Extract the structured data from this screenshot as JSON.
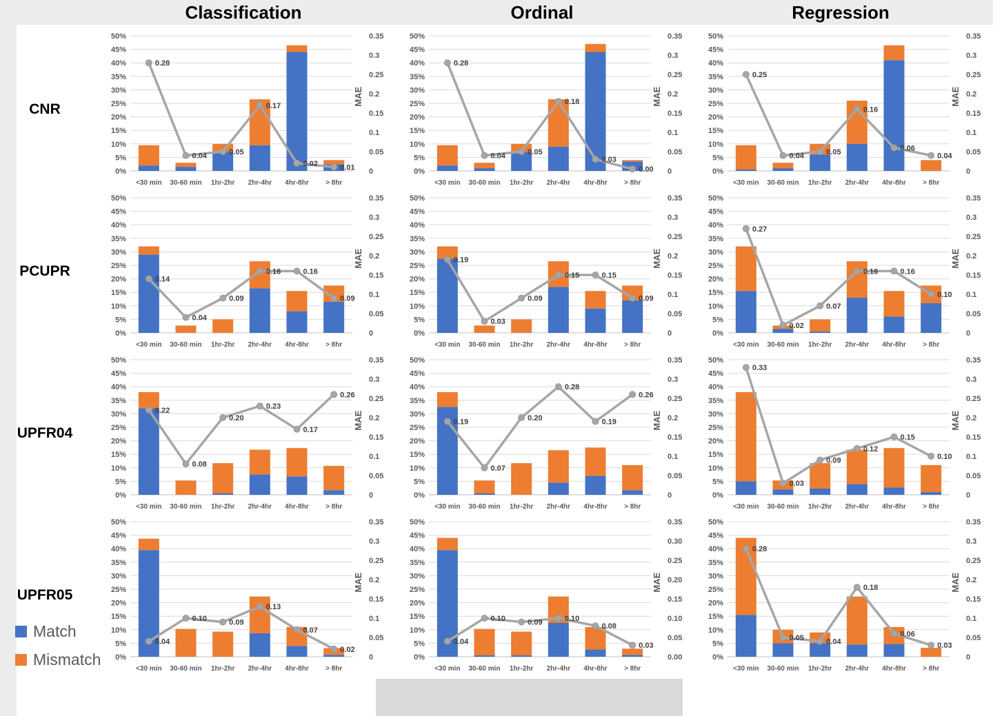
{
  "page": {
    "column_titles": [
      "Classification",
      "Ordinal",
      "Regression"
    ],
    "row_labels": [
      "CNR",
      "PCUPR",
      "UPFR04",
      "UPFR05"
    ],
    "legend": [
      {
        "label": "Match",
        "color": "#4472C4"
      },
      {
        "label": "Mismatch",
        "color": "#ED7D31"
      }
    ],
    "colors": {
      "match": "#4472C4",
      "mismatch": "#ED7D31",
      "mae_line": "#A6A6A6",
      "gridline": "#D9D9D9",
      "axis_text": "#595959",
      "label_text": "#3F3F3F"
    }
  },
  "axes": {
    "left_ticks": [
      "50%",
      "45%",
      "40%",
      "35%",
      "30%",
      "25%",
      "20%",
      "15%",
      "10%",
      "5%",
      "0%"
    ],
    "left_range": [
      0,
      50
    ],
    "right_range": [
      0,
      0.35
    ],
    "right_axis_title": "MAE",
    "grid": true
  },
  "chart_data": [
    {
      "type": "stacked-bar+line",
      "row": "CNR",
      "column": "Classification",
      "categories": [
        "<30 min",
        "30-60 min",
        "1hr-2hr",
        "2hr-4hr",
        "4hr-8hr",
        "> 8hr"
      ],
      "series": [
        {
          "name": "Match",
          "type": "bar",
          "values": [
            2,
            1.5,
            7,
            9.5,
            44,
            2.5
          ]
        },
        {
          "name": "Mismatch",
          "type": "bar",
          "values": [
            7.5,
            1.5,
            3,
            17,
            2.5,
            1.5
          ]
        },
        {
          "name": "MAE",
          "type": "line",
          "values": [
            0.28,
            0.04,
            0.05,
            0.17,
            0.02,
            0.01
          ],
          "labels": [
            "0.28",
            "0.04",
            "0.05",
            "0.17",
            "0.02",
            "0.01"
          ]
        }
      ],
      "right_ticks": [
        "0.35",
        "0.3",
        "0.25",
        "0.2",
        "0.15",
        "0.1",
        "0.05",
        "0"
      ]
    },
    {
      "type": "stacked-bar+line",
      "row": "CNR",
      "column": "Ordinal",
      "categories": [
        "<30 min",
        "30-60 min",
        "1hr-2hr",
        "2hr-4hr",
        "4hr-8hr",
        "> 8hr"
      ],
      "series": [
        {
          "name": "Match",
          "type": "bar",
          "values": [
            2,
            1,
            7,
            9,
            44,
            3.5
          ]
        },
        {
          "name": "Mismatch",
          "type": "bar",
          "values": [
            7.5,
            2,
            3,
            17.5,
            3,
            0.5
          ]
        },
        {
          "name": "MAE",
          "type": "line",
          "values": [
            0.28,
            0.04,
            0.05,
            0.18,
            0.03,
            0.005
          ],
          "labels": [
            "0.28",
            "0.04",
            "0.05",
            "0.18",
            "0.03",
            "0.00"
          ]
        }
      ],
      "right_ticks": [
        "0.35",
        "0.3",
        "0.25",
        "0.2",
        "0.15",
        "0.1",
        "0.05",
        "0"
      ]
    },
    {
      "type": "stacked-bar+line",
      "row": "CNR",
      "column": "Regression",
      "categories": [
        "<30 min",
        "30-60 min",
        "1hr-2hr",
        "2hr-4hr",
        "4hr-8hr",
        "> 8hr"
      ],
      "series": [
        {
          "name": "Match",
          "type": "bar",
          "values": [
            0.5,
            1,
            6,
            10,
            41,
            0
          ]
        },
        {
          "name": "Mismatch",
          "type": "bar",
          "values": [
            9,
            2,
            4,
            16,
            5.5,
            4
          ]
        },
        {
          "name": "MAE",
          "type": "line",
          "values": [
            0.25,
            0.04,
            0.05,
            0.16,
            0.06,
            0.04
          ],
          "labels": [
            "0.25",
            "0.04",
            "0.05",
            "0.16",
            "0.06",
            "0.04"
          ]
        }
      ],
      "right_ticks": [
        "0.35",
        "0.3",
        "0.25",
        "0.2",
        "0.15",
        "0.1",
        "0.05",
        "0"
      ]
    },
    {
      "type": "stacked-bar+line",
      "row": "PCUPR",
      "column": "Classification",
      "categories": [
        "<30 min",
        "30-60 min",
        "1hr-2hr",
        "2hr-4hr",
        "4hr-8hr",
        "> 8hr"
      ],
      "series": [
        {
          "name": "Match",
          "type": "bar",
          "values": [
            29,
            0,
            0,
            16.5,
            8,
            11.5
          ]
        },
        {
          "name": "Mismatch",
          "type": "bar",
          "values": [
            3,
            2.7,
            5,
            10,
            7.5,
            6
          ]
        },
        {
          "name": "MAE",
          "type": "line",
          "values": [
            0.14,
            0.04,
            0.09,
            0.16,
            0.16,
            0.09
          ],
          "labels": [
            "0.14",
            "0.04",
            "0.09",
            "0.16",
            "0.16",
            "0.09"
          ]
        }
      ],
      "right_ticks": [
        "0.35",
        "0.3",
        "0.25",
        "0.2",
        "0.15",
        "0.1",
        "0.05",
        "0"
      ]
    },
    {
      "type": "stacked-bar+line",
      "row": "PCUPR",
      "column": "Ordinal",
      "categories": [
        "<30 min",
        "30-60 min",
        "1hr-2hr",
        "2hr-4hr",
        "4hr-8hr",
        "> 8hr"
      ],
      "series": [
        {
          "name": "Match",
          "type": "bar",
          "values": [
            27.5,
            0,
            0,
            17,
            9,
            12
          ]
        },
        {
          "name": "Mismatch",
          "type": "bar",
          "values": [
            4.5,
            2.7,
            5,
            9.5,
            6.5,
            5.5
          ]
        },
        {
          "name": "MAE",
          "type": "line",
          "values": [
            0.19,
            0.03,
            0.09,
            0.15,
            0.15,
            0.09
          ],
          "labels": [
            "0.19",
            "0.03",
            "0.09",
            "0.15",
            "0.15",
            "0.09"
          ]
        }
      ],
      "right_ticks": [
        "0.35",
        "0.3",
        "0.25",
        "0.2",
        "0.15",
        "0.1",
        "0.05",
        "0"
      ]
    },
    {
      "type": "stacked-bar+line",
      "row": "PCUPR",
      "column": "Regression",
      "categories": [
        "<30 min",
        "30-60 min",
        "1hr-2hr",
        "2hr-4hr",
        "4hr-8hr",
        "> 8hr"
      ],
      "series": [
        {
          "name": "Match",
          "type": "bar",
          "values": [
            15.5,
            1.5,
            0.5,
            13,
            6,
            11
          ]
        },
        {
          "name": "Mismatch",
          "type": "bar",
          "values": [
            16.5,
            1.2,
            4.5,
            13.5,
            9.5,
            6.5
          ]
        },
        {
          "name": "MAE",
          "type": "line",
          "values": [
            0.27,
            0.02,
            0.07,
            0.16,
            0.16,
            0.1
          ],
          "labels": [
            "0.27",
            "0.02",
            "0.07",
            "0.16",
            "0.16",
            "0.10"
          ]
        }
      ],
      "right_ticks": [
        "0.35",
        "0.3",
        "0.25",
        "0.2",
        "0.15",
        "0.1",
        "0.05",
        "0"
      ]
    },
    {
      "type": "stacked-bar+line",
      "row": "UPFR04",
      "column": "Classification",
      "categories": [
        "<30 min",
        "30-60 min",
        "1hr-2hr",
        "2hr-4hr",
        "4hr-8hr",
        "> 8hr"
      ],
      "series": [
        {
          "name": "Match",
          "type": "bar",
          "values": [
            32,
            0,
            0.5,
            7.5,
            6.8,
            1.7
          ]
        },
        {
          "name": "Mismatch",
          "type": "bar",
          "values": [
            6,
            5.3,
            11.2,
            9.2,
            10.5,
            9
          ]
        },
        {
          "name": "MAE",
          "type": "line",
          "values": [
            0.22,
            0.08,
            0.2,
            0.23,
            0.17,
            0.26
          ],
          "labels": [
            "0.22",
            "0.08",
            "0.20",
            "0.23",
            "0.17",
            "0.26"
          ]
        }
      ],
      "right_ticks": [
        "0.35",
        "0.3",
        "0.25",
        "0.2",
        "0.15",
        "0.1",
        "0.05",
        "0"
      ]
    },
    {
      "type": "stacked-bar+line",
      "row": "UPFR04",
      "column": "Ordinal",
      "categories": [
        "<30 min",
        "30-60 min",
        "1hr-2hr",
        "2hr-4hr",
        "4hr-8hr",
        "> 8hr"
      ],
      "series": [
        {
          "name": "Match",
          "type": "bar",
          "values": [
            32.5,
            0.5,
            0,
            4.5,
            7,
            1.7
          ]
        },
        {
          "name": "Mismatch",
          "type": "bar",
          "values": [
            5.5,
            4.8,
            11.7,
            12,
            10.5,
            9.3
          ]
        },
        {
          "name": "MAE",
          "type": "line",
          "values": [
            0.19,
            0.07,
            0.2,
            0.28,
            0.19,
            0.26
          ],
          "labels": [
            "0.19",
            "0.07",
            "0.20",
            "0.28",
            "0.19",
            "0.26"
          ]
        }
      ],
      "right_ticks": [
        "0.35",
        "0.3",
        "0.25",
        "0.2",
        "0.15",
        "0.1",
        "0.05",
        "0"
      ]
    },
    {
      "type": "stacked-bar+line",
      "row": "UPFR04",
      "column": "Regression",
      "categories": [
        "<30 min",
        "30-60 min",
        "1hr-2hr",
        "2hr-4hr",
        "4hr-8hr",
        "> 8hr"
      ],
      "series": [
        {
          "name": "Match",
          "type": "bar",
          "values": [
            5,
            2,
            2.3,
            4,
            2.7,
            1
          ]
        },
        {
          "name": "Mismatch",
          "type": "bar",
          "values": [
            33,
            3.3,
            9.4,
            12.7,
            14.6,
            10
          ]
        },
        {
          "name": "MAE",
          "type": "line",
          "values": [
            0.33,
            0.03,
            0.09,
            0.12,
            0.15,
            0.1
          ],
          "labels": [
            "0.33",
            "0.03",
            "0.09",
            "0.12",
            "0.15",
            "0.10"
          ]
        }
      ],
      "right_ticks": [
        "0.35",
        "0.3",
        "0.25",
        "0.2",
        "0.15",
        "0.1",
        "0.05",
        "0"
      ]
    },
    {
      "type": "stacked-bar+line",
      "row": "UPFR05",
      "column": "Classification",
      "categories": [
        "<30 min",
        "30-60 min",
        "1hr-2hr",
        "2hr-4hr",
        "4hr-8hr",
        "> 8hr"
      ],
      "series": [
        {
          "name": "Match",
          "type": "bar",
          "values": [
            39.5,
            0,
            0,
            8.7,
            4,
            0.7
          ]
        },
        {
          "name": "Mismatch",
          "type": "bar",
          "values": [
            4.2,
            10.3,
            9.3,
            13.6,
            7,
            2.5
          ]
        },
        {
          "name": "MAE",
          "type": "line",
          "values": [
            0.04,
            0.1,
            0.09,
            0.13,
            0.07,
            0.02
          ],
          "labels": [
            "0.04",
            "0.10",
            "0.09",
            "0.13",
            "0.07",
            "0.02"
          ]
        }
      ],
      "right_ticks": [
        "0.35",
        "0.3",
        "0.25",
        "0.2",
        "0.15",
        "0.1",
        "0.05",
        "0"
      ]
    },
    {
      "type": "stacked-bar+line",
      "row": "UPFR05",
      "column": "Ordinal",
      "categories": [
        "<30 min",
        "30-60 min",
        "1hr-2hr",
        "2hr-4hr",
        "4hr-8hr",
        "> 8hr"
      ],
      "series": [
        {
          "name": "Match",
          "type": "bar",
          "values": [
            39.5,
            0.5,
            0.5,
            12.5,
            2.7,
            0.7
          ]
        },
        {
          "name": "Mismatch",
          "type": "bar",
          "values": [
            4.5,
            9.8,
            8.8,
            9.8,
            8.3,
            2.3
          ]
        },
        {
          "name": "MAE",
          "type": "line",
          "values": [
            0.04,
            0.1,
            0.09,
            0.1,
            0.08,
            0.03
          ],
          "labels": [
            "0.04",
            "0.10",
            "0.09",
            "0.10",
            "0.08",
            "0.03"
          ]
        }
      ],
      "right_ticks": [
        "0.35",
        "0.30",
        "0.25",
        "0.20",
        "0.15",
        "0.10",
        "0.05",
        "0.00"
      ]
    },
    {
      "type": "stacked-bar+line",
      "row": "UPFR05",
      "column": "Regression",
      "categories": [
        "<30 min",
        "30-60 min",
        "1hr-2hr",
        "2hr-4hr",
        "4hr-8hr",
        "> 8hr"
      ],
      "series": [
        {
          "name": "Match",
          "type": "bar",
          "values": [
            15.5,
            5,
            5,
            4.5,
            4.7,
            0
          ]
        },
        {
          "name": "Mismatch",
          "type": "bar",
          "values": [
            28.5,
            5,
            4,
            17.8,
            6.3,
            3.3
          ]
        },
        {
          "name": "MAE",
          "type": "line",
          "values": [
            0.28,
            0.05,
            0.04,
            0.18,
            0.06,
            0.03
          ],
          "labels": [
            "0.28",
            "0.05",
            "0.04",
            "0.18",
            "0.06",
            "0.03"
          ]
        }
      ],
      "right_ticks": [
        "0.35",
        "0.3",
        "0.25",
        "0.2",
        "0.15",
        "0.1",
        "0.05",
        "0"
      ]
    }
  ]
}
